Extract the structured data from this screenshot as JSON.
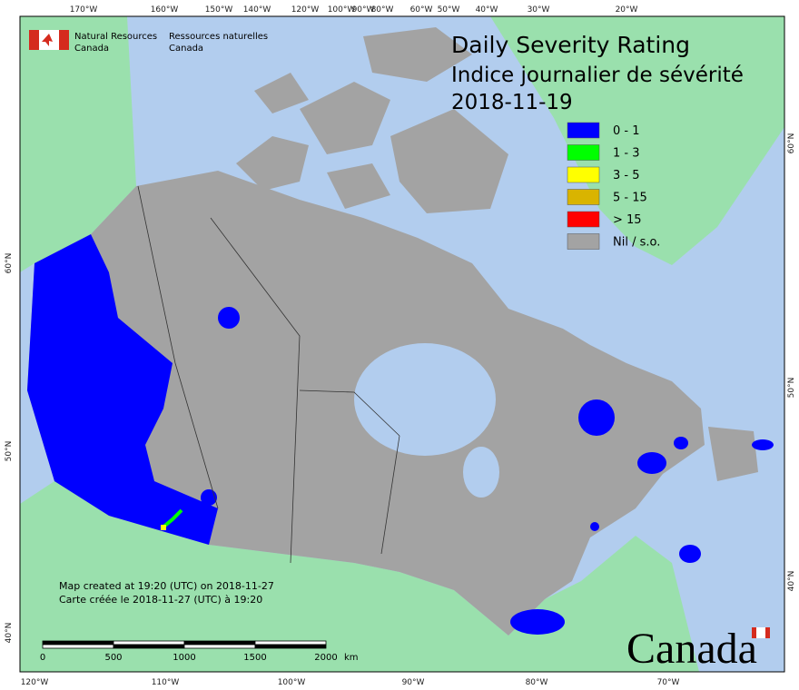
{
  "header": {
    "title": "Daily Severity Rating",
    "subtitle": "Indice journalier de sévérité",
    "date": "2018-11-19"
  },
  "logo": {
    "en_line1": "Natural Resources",
    "en_line2": "Canada",
    "fr_line1": "Ressources naturelles",
    "fr_line2": "Canada"
  },
  "legend": [
    {
      "label": "0 - 1",
      "color": "#0000ff"
    },
    {
      "label": "1 - 3",
      "color": "#00ff00"
    },
    {
      "label": "3 - 5",
      "color": "#ffff00"
    },
    {
      "label": "5 - 15",
      "color": "#d9b400"
    },
    {
      "label": "> 15",
      "color": "#ff0000"
    },
    {
      "label": "Nil / s.o.",
      "color": "#a3a3a3"
    }
  ],
  "graticule": {
    "top": [
      "170°W",
      "160°W",
      "150°W",
      "140°W",
      "120°W",
      "100°W",
      "90°W",
      "80°W",
      "60°W",
      "50°W",
      "40°W",
      "30°W",
      "20°W"
    ],
    "bottom": [
      "120°W",
      "110°W",
      "100°W",
      "90°W",
      "80°W",
      "70°W"
    ],
    "left": [
      "60°N",
      "50°N",
      "40°N"
    ],
    "right": [
      "60°N",
      "50°N",
      "40°N"
    ]
  },
  "footer": {
    "created_en": "Map created at 19:20 (UTC) on 2018-11-27",
    "created_fr": "Carte créée le 2018-11-27 (UTC) à 19:20"
  },
  "scale_bar": {
    "ticks": [
      "0",
      "500",
      "1000",
      "1500",
      "2000"
    ],
    "unit": "km"
  },
  "wordmark": "Canada"
}
